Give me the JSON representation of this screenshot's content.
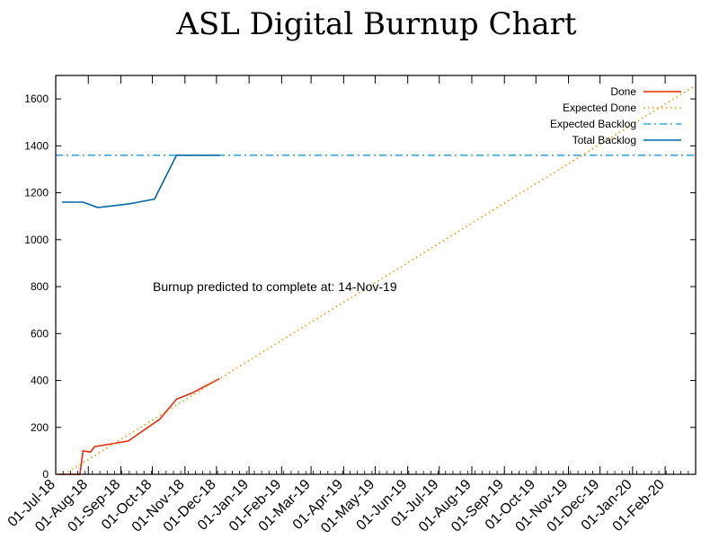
{
  "chart_data": {
    "type": "line",
    "title": "ASL Digital Burnup Chart",
    "xlabel": "",
    "ylabel": "",
    "xlim": [
      "2018-07-01",
      "2020-03-01"
    ],
    "ylim": [
      0,
      1700
    ],
    "yticks": [
      0,
      200,
      400,
      600,
      800,
      1000,
      1200,
      1400,
      1600
    ],
    "xtick_labels": [
      "01-Jul-18",
      "01-Aug-18",
      "01-Sep-18",
      "01-Oct-18",
      "01-Nov-18",
      "01-Dec-18",
      "01-Jan-19",
      "01-Feb-19",
      "01-Mar-19",
      "01-Apr-19",
      "01-May-19",
      "01-Jun-19",
      "01-Jul-19",
      "01-Aug-19",
      "01-Sep-19",
      "01-Oct-19",
      "01-Nov-19",
      "01-Dec-19",
      "01-Jan-20",
      "01-Feb-20"
    ],
    "legend_position": "top-right",
    "grid": false,
    "annotation": "Burnup predicted to complete at: 14-Nov-19",
    "series": [
      {
        "name": "Done",
        "style": "solid",
        "color": "#e8290b",
        "points": [
          [
            "2018-07-03",
            0
          ],
          [
            "2018-07-24",
            0
          ],
          [
            "2018-07-27",
            100
          ],
          [
            "2018-08-03",
            95
          ],
          [
            "2018-08-07",
            118
          ],
          [
            "2018-09-08",
            142
          ],
          [
            "2018-10-08",
            235
          ],
          [
            "2018-10-24",
            320
          ],
          [
            "2018-11-07",
            345
          ],
          [
            "2018-12-04",
            408
          ]
        ]
      },
      {
        "name": "Expected Done",
        "style": "dotted",
        "color": "#e69b00",
        "points": [
          [
            "2018-07-09",
            0
          ],
          [
            "2020-02-29",
            1655
          ]
        ]
      },
      {
        "name": "Expected Backlog",
        "style": "dash-dot",
        "color": "#3aa8dc",
        "points": [
          [
            "2018-07-01",
            1360
          ],
          [
            "2020-03-01",
            1360
          ]
        ]
      },
      {
        "name": "Total Backlog",
        "style": "solid",
        "color": "#0068a6",
        "points": [
          [
            "2018-07-07",
            1160
          ],
          [
            "2018-07-27",
            1160
          ],
          [
            "2018-08-10",
            1137
          ],
          [
            "2018-09-08",
            1152
          ],
          [
            "2018-10-03",
            1173
          ],
          [
            "2018-10-24",
            1360
          ],
          [
            "2018-12-04",
            1360
          ]
        ]
      }
    ]
  }
}
